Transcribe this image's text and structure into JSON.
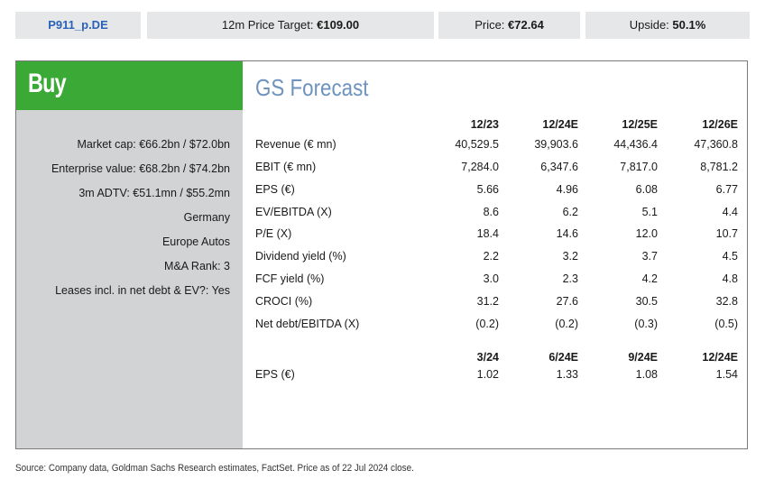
{
  "header": {
    "ticker": "P911_p.DE",
    "price_target_label": "12m Price Target: ",
    "price_target_value": "€109.00",
    "price_label": "Price: ",
    "price_value": "€72.64",
    "upside_label": "Upside: ",
    "upside_value": "50.1%"
  },
  "rating": "Buy",
  "facts": [
    "Market cap: €66.2bn / $72.0bn",
    "Enterprise value: €68.2bn / $74.2bn",
    "3m ADTV: €51.1mn / $55.2mn",
    "Germany",
    "Europe Autos",
    "M&A Rank: 3",
    "Leases incl. in net debt & EV?: Yes"
  ],
  "forecast": {
    "title": "GS Forecast",
    "annual_headers": [
      "12/23",
      "12/24E",
      "12/25E",
      "12/26E"
    ],
    "annual_rows": [
      {
        "label": "Revenue (€ mn)",
        "values": [
          "40,529.5",
          "39,903.6",
          "44,436.4",
          "47,360.8"
        ]
      },
      {
        "label": "EBIT (€ mn)",
        "values": [
          "7,284.0",
          "6,347.6",
          "7,817.0",
          "8,781.2"
        ]
      },
      {
        "label": "EPS (€)",
        "values": [
          "5.66",
          "4.96",
          "6.08",
          "6.77"
        ]
      },
      {
        "label": "EV/EBITDA (X)",
        "values": [
          "8.6",
          "6.2",
          "5.1",
          "4.4"
        ]
      },
      {
        "label": "P/E (X)",
        "values": [
          "18.4",
          "14.6",
          "12.0",
          "10.7"
        ]
      },
      {
        "label": "Dividend yield (%)",
        "values": [
          "2.2",
          "3.2",
          "3.7",
          "4.5"
        ]
      },
      {
        "label": "FCF yield (%)",
        "values": [
          "3.0",
          "2.3",
          "4.2",
          "4.8"
        ]
      },
      {
        "label": "CROCI (%)",
        "values": [
          "31.2",
          "27.6",
          "30.5",
          "32.8"
        ]
      },
      {
        "label": "Net debt/EBITDA (X)",
        "values": [
          "(0.2)",
          "(0.2)",
          "(0.3)",
          "(0.5)"
        ]
      }
    ],
    "quarterly_headers": [
      "3/24",
      "6/24E",
      "9/24E",
      "12/24E"
    ],
    "quarterly_rows": [
      {
        "label": "EPS (€)",
        "values": [
          "1.02",
          "1.33",
          "1.08",
          "1.54"
        ]
      }
    ]
  },
  "source": "Source: Company data, Goldman Sachs Research estimates, FactSet. Price as of 22 Jul 2024 close.",
  "colors": {
    "buy_green": "#3aa935",
    "ticker_blue": "#2a62b8",
    "title_blue": "#6d93be",
    "panel_gray": "#d1d3d4",
    "header_gray": "#e6e7e8"
  }
}
